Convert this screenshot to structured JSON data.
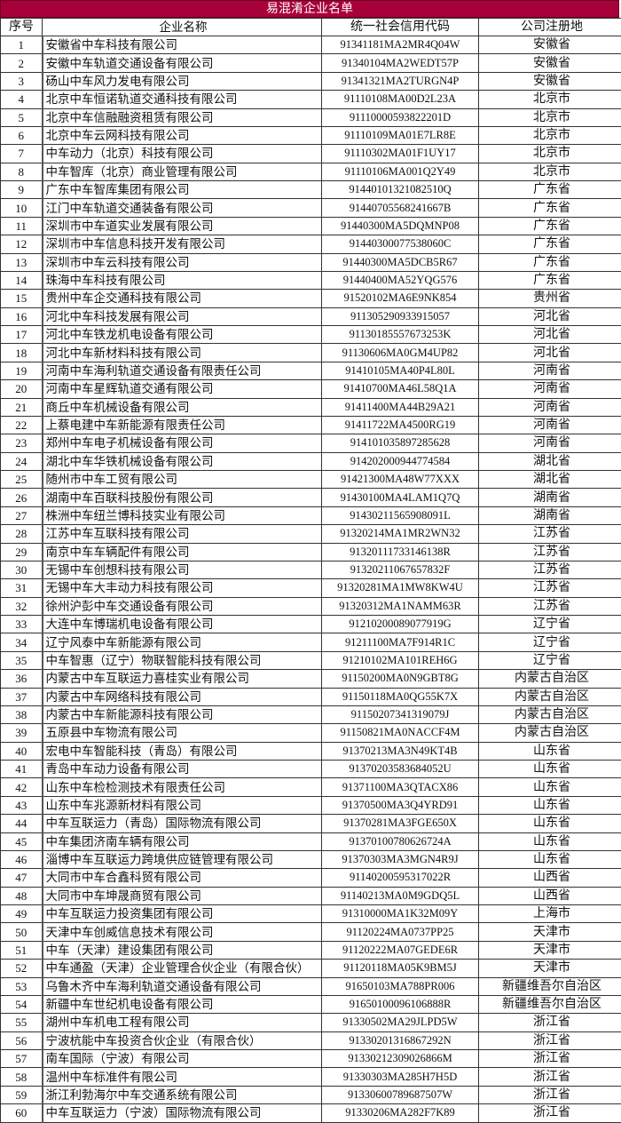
{
  "title": "易混淆企业名单",
  "colors": {
    "title_bar": "#a8003a",
    "title_text": "#ffffff"
  },
  "columns": [
    "序号",
    "企业名称",
    "统一社会信用代码",
    "公司注册地"
  ],
  "rows": [
    [
      "1",
      "安徽省中车科技有限公司",
      "91341181MA2MR4Q04W",
      "安徽省"
    ],
    [
      "2",
      "安徽中车轨道交通设备有限公司",
      "91340104MA2WEDT57P",
      "安徽省"
    ],
    [
      "3",
      "砀山中车风力发电有限公司",
      "91341321MA2TURGN4P",
      "安徽省"
    ],
    [
      "4",
      "北京中车恒诺轨道交通科技有限公司",
      "91110108MA00D2L23A",
      "北京市"
    ],
    [
      "5",
      "北京中车信融融资租赁有限公司",
      "91110000593822201D",
      "北京市"
    ],
    [
      "6",
      "北京中车云网科技有限公司",
      "91110109MA01E7LR8E",
      "北京市"
    ],
    [
      "7",
      "中车动力（北京）科技有限公司",
      "91110302MA01F1UY17",
      "北京市"
    ],
    [
      "8",
      "中车智库（北京）商业管理有限公司",
      "91110106MA001Q2Y49",
      "北京市"
    ],
    [
      "9",
      "广东中车智库集团有限公司",
      "91440101321082510Q",
      "广东省"
    ],
    [
      "10",
      "江门中车轨道交通装备有限公司",
      "91440705568241667B",
      "广东省"
    ],
    [
      "11",
      "深圳市中车道实业发展有限公司",
      "91440300MA5DQMNP08",
      "广东省"
    ],
    [
      "12",
      "深圳市中车信息科技开发有限公司",
      "91440300077538060C",
      "广东省"
    ],
    [
      "13",
      "深圳市中车云科技有限公司",
      "91440300MA5DCB5R67",
      "广东省"
    ],
    [
      "14",
      "珠海中车科技有限公司",
      "91440400MA52YQG576",
      "广东省"
    ],
    [
      "15",
      "贵州中车企交通科技有限公司",
      "91520102MA6E9NK854",
      "贵州省"
    ],
    [
      "16",
      "河北中车科技发展有限公司",
      "911305290933915057",
      "河北省"
    ],
    [
      "17",
      "河北中车铁龙机电设备有限公司",
      "91130185557673253K",
      "河北省"
    ],
    [
      "18",
      "河北中车新材料科技有限公司",
      "91130606MA0GM4UP82",
      "河北省"
    ],
    [
      "19",
      "河南中车海利轨道交通设备有限责任公司",
      "91410105MA40P4L80L",
      "河南省"
    ],
    [
      "20",
      "河南中车星辉轨道交通有限公司",
      "91410700MA46L58Q1A",
      "河南省"
    ],
    [
      "21",
      "商丘中车机械设备有限公司",
      "91411400MA44B29A21",
      "河南省"
    ],
    [
      "22",
      "上蔡电建中车新能源有限责任公司",
      "91411722MA4500RG19",
      "河南省"
    ],
    [
      "23",
      "郑州中车电子机械设备有限公司",
      "914101035897285628",
      "河南省"
    ],
    [
      "24",
      "湖北中车华铁机械设备有限公司",
      "914202000944774584",
      "湖北省"
    ],
    [
      "25",
      "随州市中车工贸有限公司",
      "91421300MA48W77XXX",
      "湖北省"
    ],
    [
      "26",
      "湖南中车百联科技股份有限公司",
      "91430100MA4LAM1Q7Q",
      "湖南省"
    ],
    [
      "27",
      "株洲中车纽兰博科技实业有限公司",
      "91430211565908091L",
      "湖南省"
    ],
    [
      "28",
      "江苏中车互联科技有限公司",
      "91320214MA1MR2WN32",
      "江苏省"
    ],
    [
      "29",
      "南京中车车辆配件有限公司",
      "91320111733146138R",
      "江苏省"
    ],
    [
      "30",
      "无锡中车创想科技有限公司",
      "91320211067657832F",
      "江苏省"
    ],
    [
      "31",
      "无锡中车大丰动力科技有限公司",
      "91320281MA1MW8KW4U",
      "江苏省"
    ],
    [
      "32",
      "徐州沪彭中车交通设备有限公司",
      "91320312MA1NAMM63R",
      "江苏省"
    ],
    [
      "33",
      "大连中车博瑞机电设备有限公司",
      "91210200089077919G",
      "辽宁省"
    ],
    [
      "34",
      "辽宁风泰中车新能源有限公司",
      "91211100MA7F914R1C",
      "辽宁省"
    ],
    [
      "35",
      "中车智惠（辽宁）物联智能科技有限公司",
      "91210102MA101REH6G",
      "辽宁省"
    ],
    [
      "36",
      "内蒙古中车互联运力喜桂实业有限公司",
      "91150200MA0N9GBT8G",
      "内蒙古自治区"
    ],
    [
      "37",
      "内蒙古中车网络科技有限公司",
      "91150118MA0QG55K7X",
      "内蒙古自治区"
    ],
    [
      "38",
      "内蒙古中车新能源科技有限公司",
      "91150207341319079J",
      "内蒙古自治区"
    ],
    [
      "39",
      "五原县中车物流有限公司",
      "91150821MA0NACCF4M",
      "内蒙古自治区"
    ],
    [
      "40",
      "宏电中车智能科技（青岛）有限公司",
      "91370213MA3N49KT4B",
      "山东省"
    ],
    [
      "41",
      "青岛中车动力设备有限公司",
      "91370203583684052U",
      "山东省"
    ],
    [
      "42",
      "山东中车检检测技术有限责任公司",
      "91371100MA3QTACX86",
      "山东省"
    ],
    [
      "43",
      "山东中车兆源新材料有限公司",
      "91370500MA3Q4YRD91",
      "山东省"
    ],
    [
      "44",
      "中车互联运力（青岛）国际物流有限公司",
      "91370281MA3FGE650X",
      "山东省"
    ],
    [
      "45",
      "中车集团济南车辆有限公司",
      "91370100780626724A",
      "山东省"
    ],
    [
      "46",
      "淄博中车互联运力跨境供应链管理有限公司",
      "91370303MA3MGN4R9J",
      "山东省"
    ],
    [
      "47",
      "大同市中车合鑫科贸有限公司",
      "91140200595317022R",
      "山西省"
    ],
    [
      "48",
      "大同市中车坤晟商贸有限公司",
      "91140213MA0M9GDQ5L",
      "山西省"
    ],
    [
      "49",
      "中车互联运力投资集团有限公司",
      "91310000MA1K32M09Y",
      "上海市"
    ],
    [
      "50",
      "天津中车创威信息技术有限公司",
      "91120224MA0737PP25",
      "天津市"
    ],
    [
      "51",
      "中车（天津）建设集团有限公司",
      "91120222MA07GEDE6R",
      "天津市"
    ],
    [
      "52",
      "中车通盈（天津）企业管理合伙企业（有限合伙）",
      "91120118MA05K9BM5J",
      "天津市"
    ],
    [
      "53",
      "乌鲁木齐中车海利轨道交通设备有限公司",
      "91650103MA788PR006",
      "新疆维吾尔自治区"
    ],
    [
      "54",
      "新疆中车世纪机电设备有限公司",
      "91650100096106888R",
      "新疆维吾尔自治区"
    ],
    [
      "55",
      "湖州中车机电工程有限公司",
      "91330502MA29JLPD5W",
      "浙江省"
    ],
    [
      "56",
      "宁波杭能中车投资合伙企业（有限合伙）",
      "91330201316867292N",
      "浙江省"
    ],
    [
      "57",
      "南车国际（宁波）有限公司",
      "91330212309026866M",
      "浙江省"
    ],
    [
      "58",
      "温州中车标准件有限公司",
      "91330303MA285H7H5D",
      "浙江省"
    ],
    [
      "59",
      "浙江利勃海尔中车交通系统有限公司",
      "91330600789687507W",
      "浙江省"
    ],
    [
      "60",
      "中车互联运力（宁波）国际物流有限公司",
      "91330206MA282F7K89",
      "浙江省"
    ]
  ]
}
